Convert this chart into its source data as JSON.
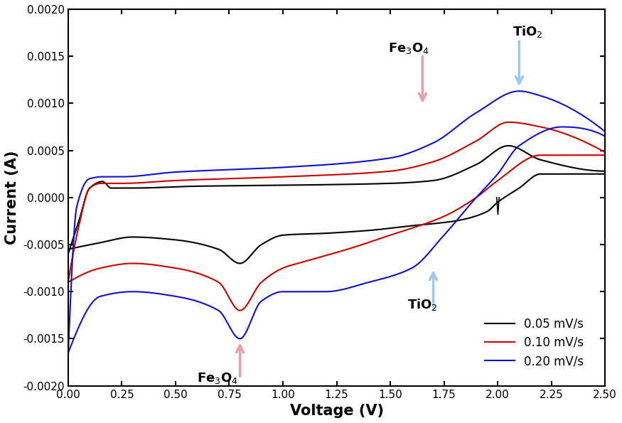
{
  "xlabel": "Voltage (V)",
  "ylabel": "Current (A)",
  "xlim": [
    0.0,
    2.5
  ],
  "ylim": [
    -0.002,
    0.002
  ],
  "yticks": [
    -0.002,
    -0.0015,
    -0.001,
    -0.0005,
    0.0,
    0.0005,
    0.001,
    0.0015,
    0.002
  ],
  "xticks": [
    0.0,
    0.25,
    0.5,
    0.75,
    1.0,
    1.25,
    1.5,
    1.75,
    2.0,
    2.25,
    2.5
  ],
  "line_colors": [
    "#000000",
    "#cc0000",
    "#1111cc"
  ],
  "line_labels": [
    "0.05 mV/s",
    "0.10 mV/s",
    "0.20 mV/s"
  ],
  "figsize": [
    8.75,
    5.95
  ],
  "dpi": 100
}
